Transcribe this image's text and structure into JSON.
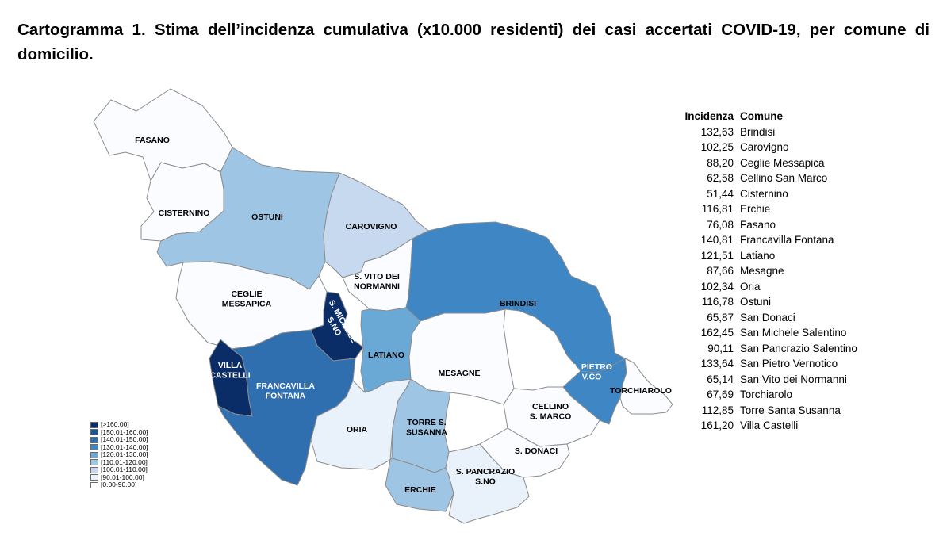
{
  "title": "Cartogramma 1. Stima dell’incidenza cumulativa (x10.000 residenti) dei casi accertati COVID-19, per comune di domicilio.",
  "colors": {
    "c1": "#fafcff",
    "c2": "#e9f1fa",
    "c3": "#c7d9ee",
    "c4": "#9fc5e4",
    "c5": "#6aa9d6",
    "c6": "#3e86c4",
    "c7": "#2f6fb0",
    "c8": "#1f5599",
    "c9": "#0b2d67"
  },
  "legend": [
    {
      "label": "[>160.00]",
      "color": "#0b2d67"
    },
    {
      "label": "[150.01-160.00]",
      "color": "#1f5599"
    },
    {
      "label": "[140.01-150.00]",
      "color": "#2f6fb0"
    },
    {
      "label": "[130.01-140.00]",
      "color": "#3e86c4"
    },
    {
      "label": "[120.01-130.00]",
      "color": "#6aa9d6"
    },
    {
      "label": "[110.01-120.00]",
      "color": "#9fc5e4"
    },
    {
      "label": "[100.01-110.00]",
      "color": "#c7d9ee"
    },
    {
      "label": "[90.01-100.00]",
      "color": "#e9f1fa"
    },
    {
      "label": "[0.00-90.00]",
      "color": "#ffffff"
    }
  ],
  "table": {
    "header_incidenza": "Incidenza",
    "header_comune": "Comune",
    "rows": [
      {
        "incidenza": "132,63",
        "comune": "Brindisi"
      },
      {
        "incidenza": "102,25",
        "comune": "Carovigno"
      },
      {
        "incidenza": "88,20",
        "comune": "Ceglie Messapica"
      },
      {
        "incidenza": "62,58",
        "comune": "Cellino San Marco"
      },
      {
        "incidenza": "51,44",
        "comune": "Cisternino"
      },
      {
        "incidenza": "116,81",
        "comune": "Erchie"
      },
      {
        "incidenza": "76,08",
        "comune": "Fasano"
      },
      {
        "incidenza": "140,81",
        "comune": "Francavilla Fontana"
      },
      {
        "incidenza": "121,51",
        "comune": "Latiano"
      },
      {
        "incidenza": "87,66",
        "comune": "Mesagne"
      },
      {
        "incidenza": "102,34",
        "comune": "Oria"
      },
      {
        "incidenza": "116,78",
        "comune": "Ostuni"
      },
      {
        "incidenza": "65,87",
        "comune": "San Donaci"
      },
      {
        "incidenza": "162,45",
        "comune": "San Michele Salentino"
      },
      {
        "incidenza": "90,11",
        "comune": "San Pancrazio Salentino"
      },
      {
        "incidenza": "133,64",
        "comune": "San Pietro Vernotico"
      },
      {
        "incidenza": "65,14",
        "comune": "San Vito dei Normanni"
      },
      {
        "incidenza": "67,69",
        "comune": "Torchiarolo"
      },
      {
        "incidenza": "112,85",
        "comune": "Torre Santa Susanna"
      },
      {
        "incidenza": "161,20",
        "comune": "Villa Castelli"
      }
    ]
  },
  "map_labels": {
    "fasano": [
      "FASANO"
    ],
    "cisternino": [
      "CISTERNINO"
    ],
    "ostuni": [
      "OSTUNI"
    ],
    "carovigno": [
      "CAROVIGNO"
    ],
    "svito": [
      "S. VITO DEI",
      "NORMANNI"
    ],
    "ceglie": [
      "CEGLIE",
      "MESSAPICA"
    ],
    "smichele": [
      "S. MICHELE",
      "S.NO"
    ],
    "brindisi": [
      "BRINDISI"
    ],
    "latiano": [
      "LATIANO"
    ],
    "mesagne": [
      "MESAGNE"
    ],
    "villa": [
      "VILLA",
      "CASTELLI"
    ],
    "francavilla": [
      "FRANCAVILLA",
      "FONTANA"
    ],
    "spietro": [
      "S. PIETRO",
      "V.CO"
    ],
    "torchiarolo": [
      "TORCHIAROLO"
    ],
    "cellino": [
      "CELLINO",
      "S. MARCO"
    ],
    "oria": [
      "ORIA"
    ],
    "torre": [
      "TORRE S.",
      "SUSANNA"
    ],
    "sdonaci": [
      "S. DONACI"
    ],
    "erchie": [
      "ERCHIE"
    ],
    "spancrazio": [
      "S. PANCRAZIO",
      "S.NO"
    ]
  }
}
